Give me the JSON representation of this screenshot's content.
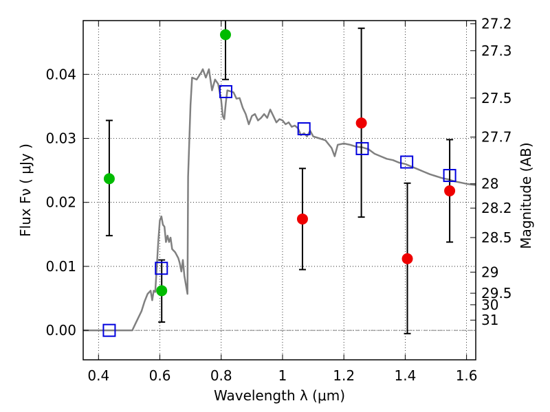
{
  "chart_data": {
    "type": "scatter",
    "xlabel": "Wavelength  λ (μm)",
    "ylabel": "Flux  Fν  ( μJy )",
    "ylabel_right": "Magnitude (AB)",
    "xlim": [
      0.35,
      1.63
    ],
    "ylim": [
      -0.0046,
      0.0484
    ],
    "grid": true,
    "x_ticks": [
      0.4,
      0.6,
      0.8,
      1.0,
      1.2,
      1.4,
      1.6
    ],
    "x_tick_labels": [
      "0.4",
      "0.6",
      "0.8",
      "1",
      "1.2",
      "1.4",
      "1.6"
    ],
    "y_ticks": [
      0.0,
      0.01,
      0.02,
      0.03,
      0.04
    ],
    "y_tick_labels": [
      "0.00",
      "0.01",
      "0.02",
      "0.03",
      "0.04"
    ],
    "right_ticks": [
      {
        "label": "27.2",
        "flux": 0.0479
      },
      {
        "label": "27.3",
        "flux": 0.0437
      },
      {
        "label": "27.5",
        "flux": 0.0363
      },
      {
        "label": "27.7",
        "flux": 0.0302
      },
      {
        "label": "28",
        "flux": 0.0229
      },
      {
        "label": "28.2",
        "flux": 0.0191
      },
      {
        "label": "28.5",
        "flux": 0.0145
      },
      {
        "label": "29",
        "flux": 0.0091
      },
      {
        "label": "29.5",
        "flux": 0.0058
      },
      {
        "label": "30",
        "flux": 0.004
      },
      {
        "label": "31",
        "flux": 0.0016
      }
    ],
    "series": [
      {
        "kind": "line",
        "color": "#808080",
        "points": [
          [
            0.35,
            0.0
          ],
          [
            0.51,
            0.0
          ],
          [
            0.52,
            0.001
          ],
          [
            0.54,
            0.003
          ],
          [
            0.55,
            0.0045
          ],
          [
            0.56,
            0.0057
          ],
          [
            0.57,
            0.0062
          ],
          [
            0.575,
            0.0047
          ],
          [
            0.58,
            0.0062
          ],
          [
            0.585,
            0.006
          ],
          [
            0.59,
            0.01
          ],
          [
            0.595,
            0.014
          ],
          [
            0.6,
            0.0172
          ],
          [
            0.605,
            0.0178
          ],
          [
            0.61,
            0.0165
          ],
          [
            0.615,
            0.0162
          ],
          [
            0.62,
            0.0138
          ],
          [
            0.625,
            0.0148
          ],
          [
            0.63,
            0.0138
          ],
          [
            0.635,
            0.0145
          ],
          [
            0.64,
            0.0127
          ],
          [
            0.65,
            0.0122
          ],
          [
            0.66,
            0.0113
          ],
          [
            0.665,
            0.0105
          ],
          [
            0.67,
            0.0092
          ],
          [
            0.675,
            0.011
          ],
          [
            0.68,
            0.0085
          ],
          [
            0.69,
            0.0057
          ],
          [
            0.692,
            0.024
          ],
          [
            0.7,
            0.0352
          ],
          [
            0.705,
            0.0395
          ],
          [
            0.72,
            0.0392
          ],
          [
            0.735,
            0.0403
          ],
          [
            0.74,
            0.0408
          ],
          [
            0.75,
            0.0395
          ],
          [
            0.76,
            0.0408
          ],
          [
            0.77,
            0.0375
          ],
          [
            0.78,
            0.0392
          ],
          [
            0.79,
            0.0385
          ],
          [
            0.8,
            0.036
          ],
          [
            0.805,
            0.0335
          ],
          [
            0.81,
            0.033
          ],
          [
            0.815,
            0.0355
          ],
          [
            0.82,
            0.0375
          ],
          [
            0.84,
            0.0372
          ],
          [
            0.85,
            0.0362
          ],
          [
            0.86,
            0.0363
          ],
          [
            0.87,
            0.0348
          ],
          [
            0.88,
            0.0338
          ],
          [
            0.89,
            0.0322
          ],
          [
            0.9,
            0.0335
          ],
          [
            0.91,
            0.0338
          ],
          [
            0.92,
            0.0328
          ],
          [
            0.93,
            0.0332
          ],
          [
            0.94,
            0.0338
          ],
          [
            0.95,
            0.0332
          ],
          [
            0.96,
            0.0345
          ],
          [
            0.97,
            0.0335
          ],
          [
            0.98,
            0.0325
          ],
          [
            0.99,
            0.033
          ],
          [
            1.0,
            0.0328
          ],
          [
            1.01,
            0.0322
          ],
          [
            1.02,
            0.0325
          ],
          [
            1.03,
            0.0318
          ],
          [
            1.04,
            0.032
          ],
          [
            1.05,
            0.0316
          ],
          [
            1.06,
            0.0305
          ],
          [
            1.07,
            0.0308
          ],
          [
            1.08,
            0.0303
          ],
          [
            1.09,
            0.0312
          ],
          [
            1.1,
            0.0303
          ],
          [
            1.12,
            0.03
          ],
          [
            1.14,
            0.0297
          ],
          [
            1.16,
            0.0285
          ],
          [
            1.17,
            0.0272
          ],
          [
            1.18,
            0.029
          ],
          [
            1.2,
            0.0292
          ],
          [
            1.22,
            0.029
          ],
          [
            1.24,
            0.0287
          ],
          [
            1.26,
            0.0286
          ],
          [
            1.28,
            0.0283
          ],
          [
            1.3,
            0.0276
          ],
          [
            1.32,
            0.0272
          ],
          [
            1.34,
            0.0268
          ],
          [
            1.36,
            0.0266
          ],
          [
            1.38,
            0.0262
          ],
          [
            1.4,
            0.026
          ],
          [
            1.42,
            0.0256
          ],
          [
            1.44,
            0.0252
          ],
          [
            1.46,
            0.0248
          ],
          [
            1.48,
            0.0244
          ],
          [
            1.5,
            0.0241
          ],
          [
            1.52,
            0.0238
          ],
          [
            1.54,
            0.0236
          ],
          [
            1.56,
            0.0233
          ],
          [
            1.58,
            0.0231
          ],
          [
            1.6,
            0.0229
          ],
          [
            1.63,
            0.0227
          ]
        ]
      },
      {
        "kind": "open-square",
        "color": "#0000dd",
        "points": [
          [
            0.435,
            0.0
          ],
          [
            0.605,
            0.0097
          ],
          [
            0.815,
            0.0373
          ],
          [
            1.07,
            0.0315
          ],
          [
            1.26,
            0.0284
          ],
          [
            1.405,
            0.0263
          ],
          [
            1.545,
            0.0242
          ]
        ]
      },
      {
        "kind": "filled-circle-errorbar",
        "color": "#00bb00",
        "points": [
          {
            "x": 0.435,
            "y": 0.0237,
            "lo": 0.0148,
            "hi": 0.0328
          },
          {
            "x": 0.606,
            "y": 0.0062,
            "lo": 0.0013,
            "hi": 0.011
          },
          {
            "x": 0.814,
            "y": 0.0462,
            "lo": 0.0392,
            "hi": 0.0484
          }
        ]
      },
      {
        "kind": "filled-circle-errorbar",
        "color": "#ee0000",
        "points": [
          {
            "x": 1.065,
            "y": 0.0174,
            "lo": 0.0095,
            "hi": 0.0253
          },
          {
            "x": 1.257,
            "y": 0.0324,
            "lo": 0.0177,
            "hi": 0.0472
          },
          {
            "x": 1.407,
            "y": 0.0112,
            "lo": -0.0005,
            "hi": 0.023
          },
          {
            "x": 1.545,
            "y": 0.0218,
            "lo": 0.0138,
            "hi": 0.0298
          }
        ]
      }
    ]
  }
}
